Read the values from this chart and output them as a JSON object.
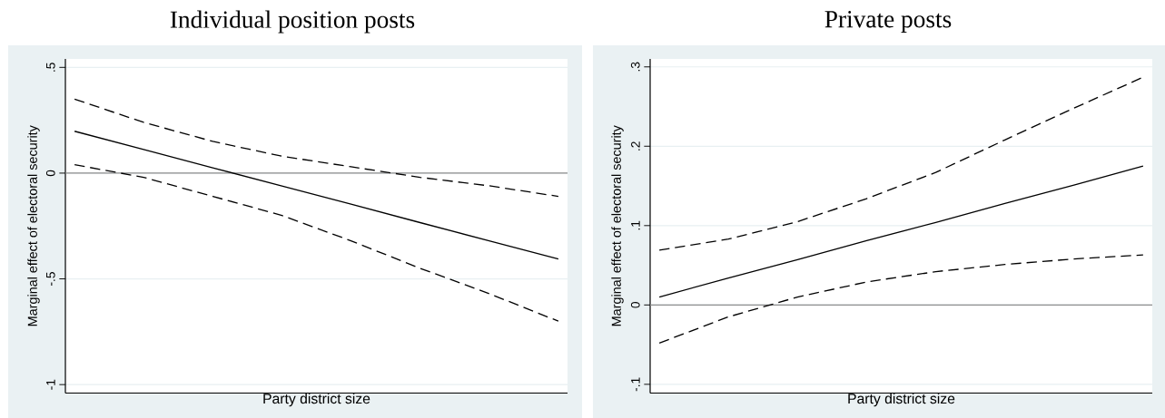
{
  "chart_data": [
    {
      "type": "line",
      "title": "Individual position posts",
      "xlabel": "Party district size",
      "ylabel": "Marginal effect of electoral security",
      "categories": [
        null,
        null,
        null,
        null,
        null,
        null,
        null,
        null
      ],
      "ylim": [
        -1.04,
        0.54
      ],
      "yticks": [
        -1,
        {
          "value": -0.5,
          "label": "-.5"
        },
        0,
        {
          "value": 0.5,
          "label": ".5"
        }
      ],
      "grid": "y",
      "ref_lines": [
        {
          "axis": "y",
          "value": 0,
          "color": "#8c8c8c"
        }
      ],
      "series": [
        {
          "color": "#000000",
          "line_style": "solid",
          "values": [
            0.198,
            0.112,
            0.025,
            -0.061,
            -0.147,
            -0.234,
            -0.32,
            -0.406
          ]
        },
        {
          "color": "#000000",
          "line_style": "dashed",
          "values": [
            0.35,
            0.24,
            0.15,
            0.08,
            0.03,
            -0.02,
            -0.06,
            -0.11
          ]
        },
        {
          "color": "#000000",
          "line_style": "dashed",
          "values": [
            0.04,
            -0.02,
            -0.11,
            -0.2,
            -0.32,
            -0.45,
            -0.57,
            -0.7
          ]
        }
      ]
    },
    {
      "type": "line",
      "title": "Private posts",
      "xlabel": "Party district size",
      "ylabel": "Marginal effect of electoral security",
      "categories": [
        null,
        null,
        null,
        null,
        null,
        null,
        null,
        null
      ],
      "ylim": [
        -0.111,
        0.31
      ],
      "yticks": [
        {
          "value": -0.1,
          "label": "-.1"
        },
        0,
        {
          "value": 0.1,
          "label": ".1"
        },
        {
          "value": 0.2,
          "label": ".2"
        },
        {
          "value": 0.3,
          "label": ".3"
        }
      ],
      "grid": "y",
      "ref_lines": [
        {
          "axis": "y",
          "value": 0,
          "color": "#8c8c8c"
        }
      ],
      "series": [
        {
          "color": "#000000",
          "line_style": "solid",
          "values": [
            0.01,
            0.034,
            0.057,
            0.081,
            0.104,
            0.128,
            0.151,
            0.175
          ]
        },
        {
          "color": "#000000",
          "line_style": "dashed",
          "values": [
            0.069,
            0.083,
            0.105,
            0.134,
            0.167,
            0.208,
            0.248,
            0.287
          ]
        },
        {
          "color": "#000000",
          "line_style": "dashed",
          "values": [
            -0.048,
            -0.015,
            0.01,
            0.029,
            0.042,
            0.051,
            0.058,
            0.063
          ]
        }
      ]
    }
  ]
}
